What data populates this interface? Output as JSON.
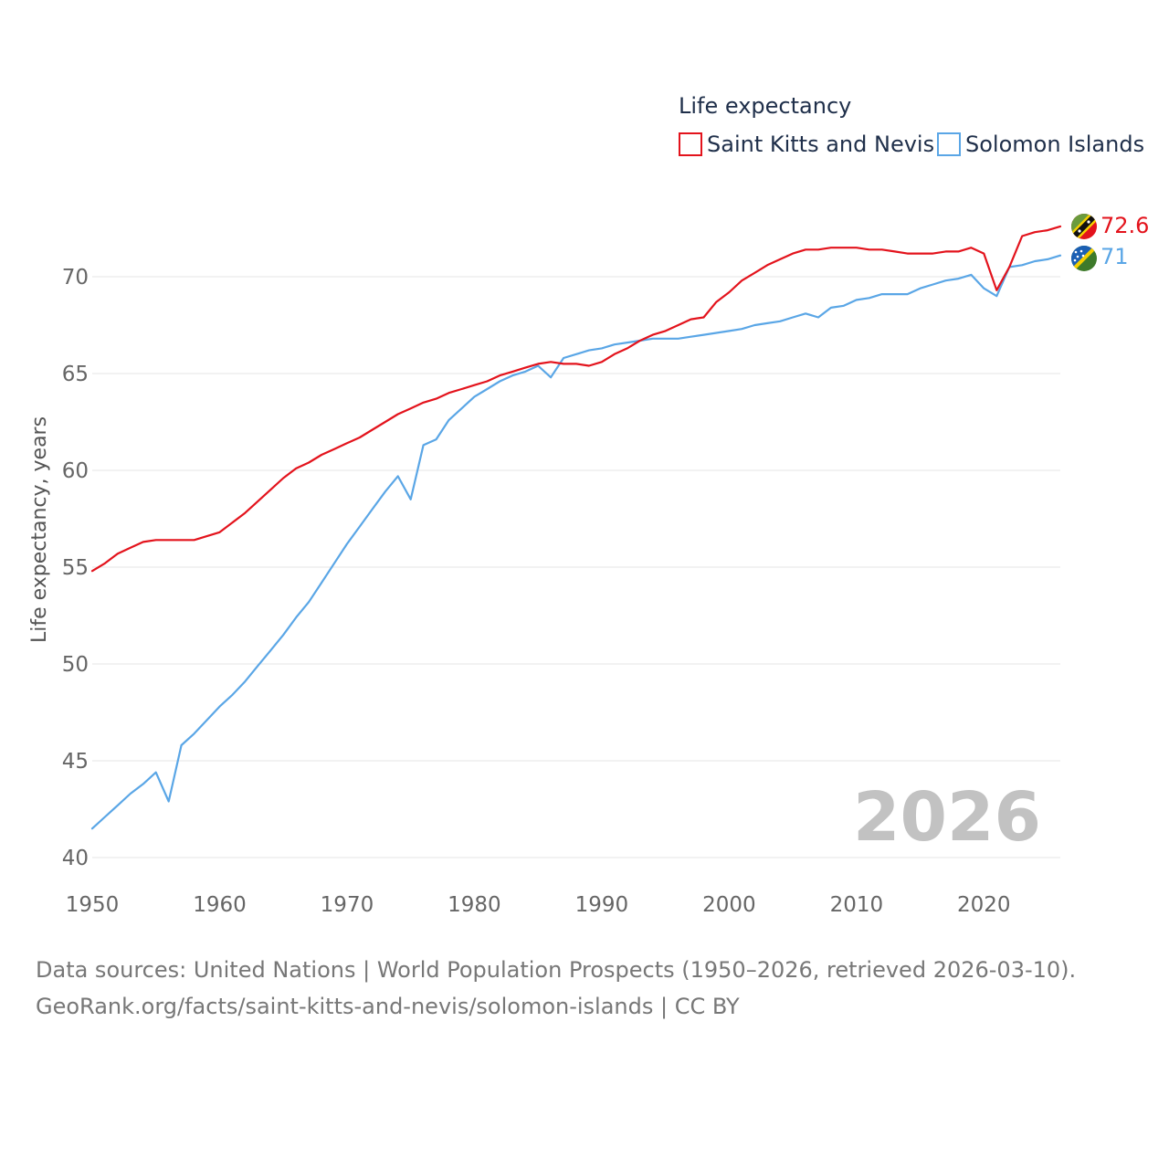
{
  "chart_data": {
    "type": "line",
    "title": "Life expectancy",
    "xlabel": "",
    "ylabel": "Life expectancy, years",
    "xlim": [
      1950,
      2026
    ],
    "ylim": [
      40,
      73
    ],
    "yticks": [
      "40",
      "45",
      "50",
      "55",
      "60",
      "65",
      "70"
    ],
    "xticks": [
      "1950",
      "1960",
      "1970",
      "1980",
      "1990",
      "2000",
      "2010",
      "2020"
    ],
    "year_label": "2026",
    "x": [
      1950,
      1951,
      1952,
      1953,
      1954,
      1955,
      1956,
      1957,
      1958,
      1959,
      1960,
      1961,
      1962,
      1963,
      1964,
      1965,
      1966,
      1967,
      1968,
      1969,
      1970,
      1971,
      1972,
      1973,
      1974,
      1975,
      1976,
      1977,
      1978,
      1979,
      1980,
      1981,
      1982,
      1983,
      1984,
      1985,
      1986,
      1987,
      1988,
      1989,
      1990,
      1991,
      1992,
      1993,
      1994,
      1995,
      1996,
      1997,
      1998,
      1999,
      2000,
      2001,
      2002,
      2003,
      2004,
      2005,
      2006,
      2007,
      2008,
      2009,
      2010,
      2011,
      2012,
      2013,
      2014,
      2015,
      2016,
      2017,
      2018,
      2019,
      2020,
      2021,
      2022,
      2023,
      2024,
      2025,
      2026
    ],
    "series": [
      {
        "name": "Saint Kitts and Nevis",
        "color": "#e3131c",
        "end_label": "72.6",
        "values": [
          54.8,
          55.2,
          55.7,
          56.0,
          56.3,
          56.4,
          56.4,
          56.4,
          56.4,
          56.6,
          56.8,
          57.3,
          57.8,
          58.4,
          59.0,
          59.6,
          60.1,
          60.4,
          60.8,
          61.1,
          61.4,
          61.7,
          62.1,
          62.5,
          62.9,
          63.2,
          63.5,
          63.7,
          64.0,
          64.2,
          64.4,
          64.6,
          64.9,
          65.1,
          65.3,
          65.5,
          65.6,
          65.5,
          65.5,
          65.4,
          65.6,
          66.0,
          66.3,
          66.7,
          67.0,
          67.2,
          67.5,
          67.8,
          67.9,
          68.7,
          69.2,
          69.8,
          70.2,
          70.6,
          70.9,
          71.2,
          71.4,
          71.4,
          71.5,
          71.5,
          71.5,
          71.4,
          71.4,
          71.3,
          71.2,
          71.2,
          71.2,
          71.3,
          71.3,
          71.5,
          71.2,
          69.3,
          70.5,
          72.1,
          72.3,
          72.4,
          72.6
        ]
      },
      {
        "name": "Solomon Islands",
        "color": "#5aa6e6",
        "end_label": "71",
        "values": [
          41.5,
          42.1,
          42.7,
          43.3,
          43.8,
          44.4,
          42.9,
          45.8,
          46.4,
          47.1,
          47.8,
          48.4,
          49.1,
          49.9,
          50.7,
          51.5,
          52.4,
          53.2,
          54.2,
          55.2,
          56.2,
          57.1,
          58.0,
          58.9,
          59.7,
          58.5,
          61.3,
          61.6,
          62.6,
          63.2,
          63.8,
          64.2,
          64.6,
          64.9,
          65.1,
          65.4,
          64.8,
          65.8,
          66.0,
          66.2,
          66.3,
          66.5,
          66.6,
          66.7,
          66.8,
          66.8,
          66.8,
          66.9,
          67.0,
          67.1,
          67.2,
          67.3,
          67.5,
          67.6,
          67.7,
          67.9,
          68.1,
          67.9,
          68.4,
          68.5,
          68.8,
          68.9,
          69.1,
          69.1,
          69.1,
          69.4,
          69.6,
          69.8,
          69.9,
          70.1,
          69.4,
          69.0,
          70.5,
          70.6,
          70.8,
          70.9,
          71.1
        ]
      }
    ]
  },
  "source": {
    "line1": "Data sources: United Nations | World Population Prospects (1950–2026, retrieved 2026-03-10).",
    "line2": "GeoRank.org/facts/saint-kitts-and-nevis/solomon-islands | CC BY"
  }
}
